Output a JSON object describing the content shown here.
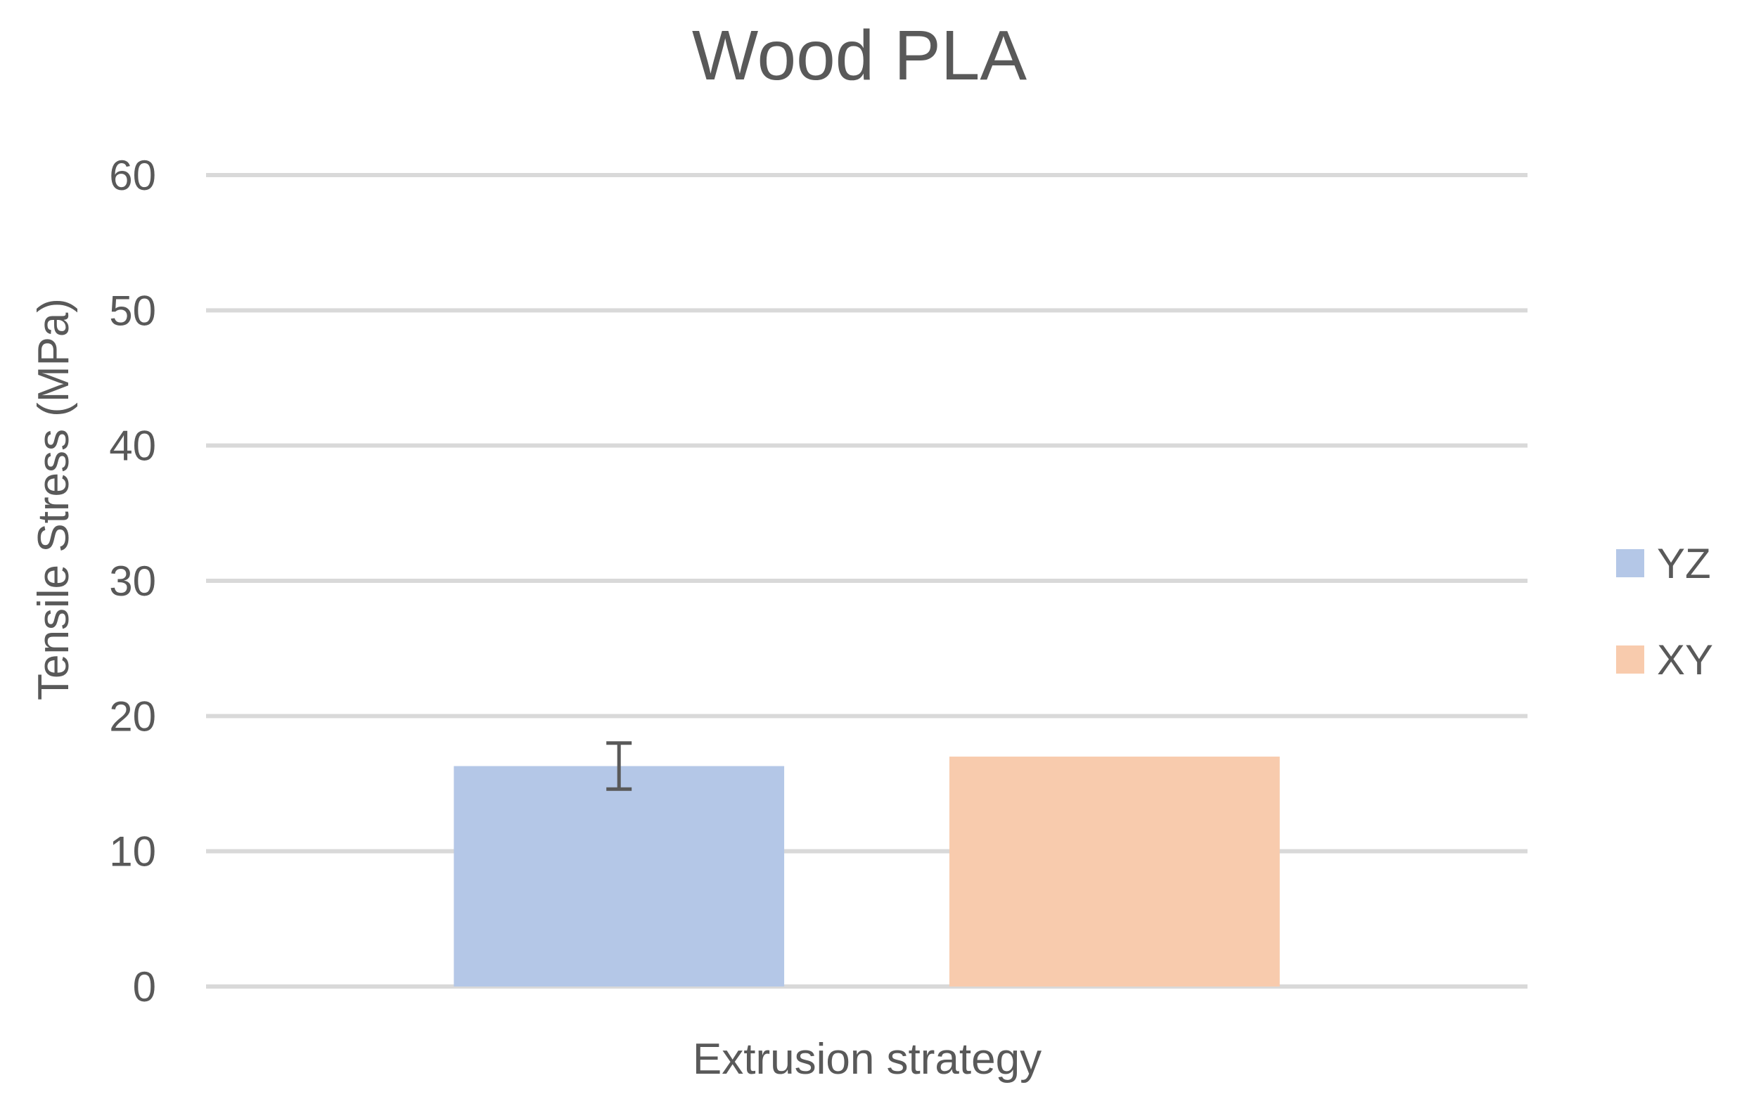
{
  "chart_data": {
    "type": "bar",
    "title": "Wood PLA",
    "xlabel": "Extrusion strategy",
    "ylabel": "Tensile Stress (MPa)",
    "ylim": [
      0,
      60
    ],
    "yticks": [
      0,
      10,
      20,
      30,
      40,
      50,
      60
    ],
    "grid": true,
    "legend_position": "right",
    "categories": [
      ""
    ],
    "series": [
      {
        "name": "YZ",
        "values": [
          16.3
        ],
        "error": [
          1.7
        ],
        "color": "#b4c7e7"
      },
      {
        "name": "XY",
        "values": [
          17.0
        ],
        "color": "#f8cbad"
      }
    ]
  }
}
